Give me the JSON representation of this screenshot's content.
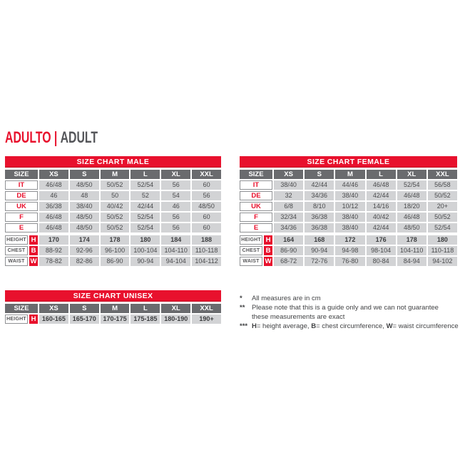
{
  "title": {
    "primary": "ADULTO",
    "separator": "|",
    "secondary": "ADULT"
  },
  "colors": {
    "accent_red": "#e8112d",
    "header_gray": "#6a6b6e",
    "cell_gray": "#d2d3d5",
    "title_gray": "#55565a",
    "value_text": "#4a4b4d"
  },
  "labels": {
    "size": "SIZE"
  },
  "columns": [
    "XS",
    "S",
    "M",
    "L",
    "XL",
    "XXL"
  ],
  "tables": {
    "male": {
      "title": "SIZE CHART MALE",
      "size_rows": [
        {
          "label": "IT",
          "values": [
            "46/48",
            "48/50",
            "50/52",
            "52/54",
            "56",
            "60"
          ]
        },
        {
          "label": "DE",
          "values": [
            "46",
            "48",
            "50",
            "52",
            "54",
            "56"
          ]
        },
        {
          "label": "UK",
          "values": [
            "36/38",
            "38/40",
            "40/42",
            "42/44",
            "46",
            "48/50"
          ]
        },
        {
          "label": "F",
          "values": [
            "46/48",
            "48/50",
            "50/52",
            "52/54",
            "56",
            "60"
          ]
        },
        {
          "label": "E",
          "values": [
            "46/48",
            "48/50",
            "50/52",
            "52/54",
            "56",
            "60"
          ]
        }
      ],
      "measure_rows": [
        {
          "label": "HEIGHT",
          "badge": "H",
          "values": [
            "170",
            "174",
            "178",
            "180",
            "184",
            "188"
          ]
        },
        {
          "label": "CHEST",
          "badge": "B",
          "values": [
            "88-92",
            "92-96",
            "96-100",
            "100-104",
            "104-110",
            "110-118"
          ]
        },
        {
          "label": "WAIST",
          "badge": "W",
          "values": [
            "78-82",
            "82-86",
            "86-90",
            "90-94",
            "94-104",
            "104-112"
          ]
        }
      ]
    },
    "female": {
      "title": "SIZE CHART FEMALE",
      "size_rows": [
        {
          "label": "IT",
          "values": [
            "38/40",
            "42/44",
            "44/46",
            "46/48",
            "52/54",
            "56/58"
          ]
        },
        {
          "label": "DE",
          "values": [
            "32",
            "34/36",
            "38/40",
            "42/44",
            "46/48",
            "50/52"
          ]
        },
        {
          "label": "UK",
          "values": [
            "6/8",
            "8/10",
            "10/12",
            "14/16",
            "18/20",
            "20+"
          ]
        },
        {
          "label": "F",
          "values": [
            "32/34",
            "36/38",
            "38/40",
            "40/42",
            "46/48",
            "50/52"
          ]
        },
        {
          "label": "E",
          "values": [
            "34/36",
            "36/38",
            "38/40",
            "42/44",
            "48/50",
            "52/54"
          ]
        }
      ],
      "measure_rows": [
        {
          "label": "HEIGHT",
          "badge": "H",
          "values": [
            "164",
            "168",
            "172",
            "176",
            "178",
            "180"
          ]
        },
        {
          "label": "CHEST",
          "badge": "B",
          "values": [
            "86-90",
            "90-94",
            "94-98",
            "98-104",
            "104-110",
            "110-118"
          ]
        },
        {
          "label": "WAIST",
          "badge": "W",
          "values": [
            "68-72",
            "72-76",
            "76-80",
            "80-84",
            "84-94",
            "94-102"
          ]
        }
      ]
    },
    "unisex": {
      "title": "SIZE CHART UNISEX",
      "size_rows": [],
      "measure_rows": [
        {
          "label": "HEIGHT",
          "badge": "H",
          "values": [
            "160-165",
            "165-170",
            "170-175",
            "175-185",
            "180-190",
            "190+"
          ]
        }
      ]
    }
  },
  "footnotes": [
    {
      "marker": "*",
      "lines": [
        "All measures are in cm"
      ]
    },
    {
      "marker": "**",
      "lines": [
        "Please note that this is a guide only and we can not guarantee",
        "these measurements are exact"
      ]
    },
    {
      "marker": "***",
      "segments": [
        {
          "bold": "H",
          "text": "= height average, "
        },
        {
          "bold": "B",
          "text": "= chest circumference, "
        },
        {
          "bold": "W",
          "text": "= waist circumference"
        }
      ]
    }
  ]
}
